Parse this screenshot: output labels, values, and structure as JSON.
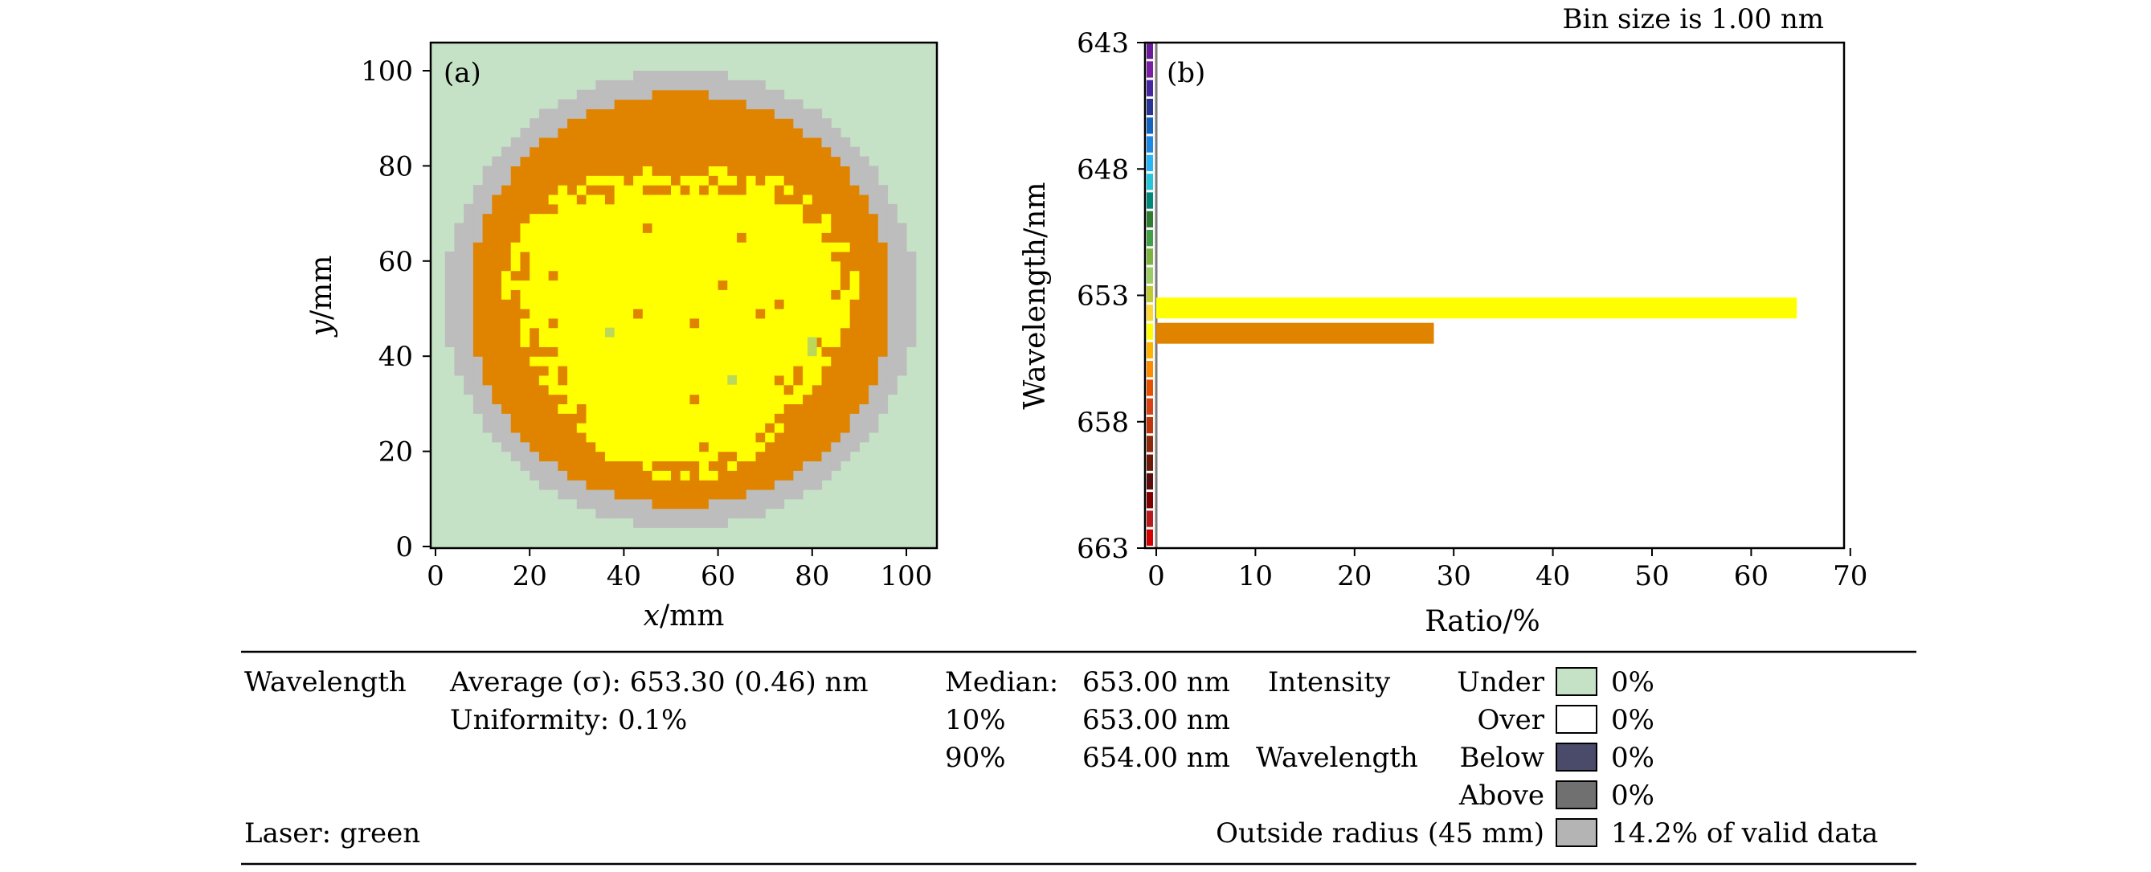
{
  "chart_data": [
    {
      "type": "heatmap",
      "panel_label": "(a)",
      "xlabel_var": "x",
      "xlabel_unit": "/mm",
      "ylabel_var": "y",
      "ylabel_unit": "/mm",
      "xlim": [
        0,
        106
      ],
      "ylim": [
        0,
        106
      ],
      "xticks": [
        0,
        20,
        40,
        60,
        80,
        100
      ],
      "yticks": [
        0,
        20,
        40,
        60,
        80,
        100
      ],
      "wafer_center": [
        52,
        52
      ],
      "radius_outer_mm": 45,
      "radius_valid_mm": 50,
      "colors": {
        "background": "#c6e2c6",
        "outside_radius": "#bdbdbd",
        "bin_654": "#e08400",
        "bin_653": "#ffff00",
        "bin_652": "#bcd85a"
      }
    },
    {
      "type": "bar",
      "orientation": "horizontal",
      "panel_label": "(b)",
      "annotation": "Bin size is 1.00 nm",
      "xlabel": "Ratio/%",
      "ylabel": "Wavelength/nm",
      "xlim": [
        -1,
        70
      ],
      "ylim": [
        663,
        643
      ],
      "xticks": [
        0,
        10,
        20,
        30,
        40,
        50,
        60,
        70
      ],
      "yticks": [
        643,
        648,
        653,
        658,
        663
      ],
      "bars": [
        {
          "wavelength": 653.5,
          "value": 64.6,
          "color": "#ffff00"
        },
        {
          "wavelength": 654.5,
          "value": 28.0,
          "color": "#e08400"
        }
      ],
      "colorbar_colors": [
        "#6a1b9a",
        "#7b1fa2",
        "#4527a0",
        "#283593",
        "#1565c0",
        "#1e88e5",
        "#29b6f6",
        "#26c6da",
        "#00897b",
        "#2e7d32",
        "#43a047",
        "#7cb342",
        "#9ccc65",
        "#c0ca33",
        "#fdd835",
        "#ffff00",
        "#ffb300",
        "#fb8c00",
        "#e65100",
        "#d84315",
        "#bf360c",
        "#8d2a0e",
        "#6d1a0a",
        "#5b0e0e",
        "#7f0000",
        "#b71c1c",
        "#d50000"
      ]
    }
  ],
  "summary": {
    "wavelength_label": "Wavelength",
    "average": "Average (σ): 653.30 (0.46) nm",
    "uniformity": "Uniformity: 0.1%",
    "median_label": "Median:",
    "median_value": "653.00 nm",
    "p10_label": "10%",
    "p10_value": "653.00 nm",
    "p90_label": "90%",
    "p90_value": "654.00 nm",
    "intensity_label": "Intensity",
    "wavelength2_label": "Wavelength",
    "laser": "Laser: green",
    "outside_label": "Outside radius (45 mm)",
    "legend": [
      {
        "label": "Under",
        "color": "#c6e2c6",
        "value": "0%"
      },
      {
        "label": "Over",
        "color": "#ffffff",
        "value": "0%"
      },
      {
        "label": "Below",
        "color": "#4a4a6a",
        "value": "0%"
      },
      {
        "label": "Above",
        "color": "#707070",
        "value": "0%"
      },
      {
        "label": "",
        "color": "#b4b4b4",
        "value": "14.2% of valid data"
      }
    ]
  }
}
